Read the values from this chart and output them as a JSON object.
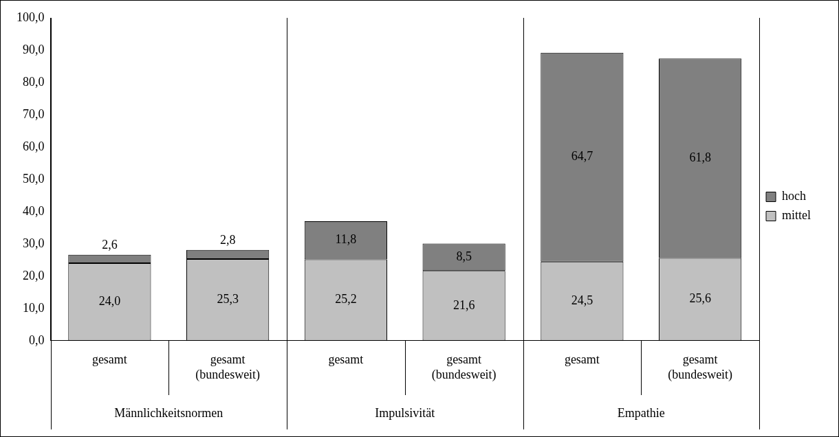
{
  "chart_data": {
    "type": "bar",
    "stacked": true,
    "categories": [
      "gesamt",
      "gesamt (bundesweit)",
      "gesamt",
      "gesamt (bundesweit)",
      "gesamt",
      "gesamt (bundesweit)"
    ],
    "series": [
      {
        "name": "mittel",
        "color": "#c0c0c0",
        "values": [
          24.0,
          25.3,
          25.2,
          21.6,
          24.5,
          25.6
        ],
        "value_labels": [
          "24,0",
          "25,3",
          "25,2",
          "21,6",
          "24,5",
          "25,6"
        ]
      },
      {
        "name": "hoch",
        "color": "#808080",
        "values": [
          2.6,
          2.8,
          11.8,
          8.5,
          64.7,
          61.8
        ],
        "value_labels": [
          "2,6",
          "2,8",
          "11,8",
          "8,5",
          "64,7",
          "61,8"
        ]
      }
    ],
    "ylim": [
      0,
      100
    ],
    "yticks": [
      {
        "value": 0,
        "label": "0,0"
      },
      {
        "value": 10,
        "label": "10,0"
      },
      {
        "value": 20,
        "label": "20,0"
      },
      {
        "value": 30,
        "label": "30,0"
      },
      {
        "value": 40,
        "label": "40,0"
      },
      {
        "value": 50,
        "label": "50,0"
      },
      {
        "value": 60,
        "label": "60,0"
      },
      {
        "value": 70,
        "label": "70,0"
      },
      {
        "value": 80,
        "label": "80,0"
      },
      {
        "value": 90,
        "label": "90,0"
      },
      {
        "value": 100,
        "label": "100,0"
      }
    ],
    "annotations": [
      "Männlichkeitsnormen",
      "Impulsivität",
      "Empathie"
    ],
    "grid": false,
    "legend": "right"
  }
}
